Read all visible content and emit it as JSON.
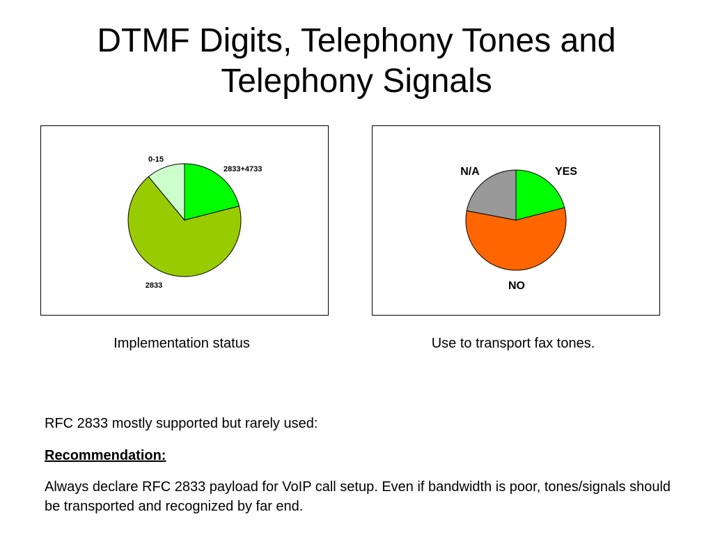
{
  "slide": {
    "title_line1": "DTMF Digits, Telephony Tones and",
    "title_line2": "Telephony Signals",
    "caption_left": "Implementation status",
    "caption_right": "Use to transport fax tones.",
    "intro": "RFC 2833 mostly supported but rarely used:",
    "recommendation_heading": "Recommendation:",
    "recommendation_text": "Always declare RFC 2833 payload for VoIP call setup. Even if bandwidth is poor, tones/signals should be transported and recognized by far end."
  },
  "chart_data": [
    {
      "type": "pie",
      "title": "",
      "label_style": "small-bold",
      "categories": [
        "2833+4733",
        "2833",
        "0-15"
      ],
      "values": [
        21,
        68,
        11
      ],
      "colors": [
        "#00ff00",
        "#99cc00",
        "#ccffcc"
      ],
      "start_angle_deg": 0,
      "direction": "clockwise"
    },
    {
      "type": "pie",
      "title": "",
      "label_style": "large-bold",
      "categories": [
        "YES",
        "NO",
        "N/A"
      ],
      "values": [
        21,
        57,
        22
      ],
      "colors": [
        "#00ff00",
        "#ff6600",
        "#999999"
      ],
      "start_angle_deg": 0,
      "direction": "clockwise"
    }
  ]
}
